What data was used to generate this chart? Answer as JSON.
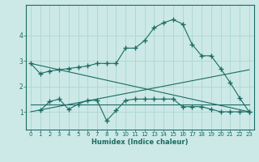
{
  "bg_color": "#cce9e7",
  "line_color": "#1a6b63",
  "grid_color": "#b0d8d5",
  "xlabel": "Humidex (Indice chaleur)",
  "xlim": [
    -0.5,
    23.5
  ],
  "ylim": [
    0.3,
    5.2
  ],
  "yticks": [
    1,
    2,
    3,
    4
  ],
  "xticks": [
    0,
    1,
    2,
    3,
    4,
    5,
    6,
    7,
    8,
    9,
    10,
    11,
    12,
    13,
    14,
    15,
    16,
    17,
    18,
    19,
    20,
    21,
    22,
    23
  ],
  "curve1_x": [
    0,
    1,
    2,
    3,
    4,
    5,
    6,
    7,
    8,
    9,
    10,
    11,
    12,
    13,
    14,
    15,
    16,
    17,
    18,
    19,
    20,
    21,
    22,
    23
  ],
  "curve1_y": [
    2.9,
    2.5,
    2.6,
    2.65,
    2.7,
    2.75,
    2.8,
    2.9,
    2.9,
    2.9,
    3.5,
    3.5,
    3.8,
    4.3,
    4.5,
    4.62,
    4.45,
    3.65,
    3.2,
    3.2,
    2.7,
    2.15,
    1.55,
    1.0
  ],
  "curve2_x": [
    1,
    2,
    3,
    4,
    5,
    6,
    7,
    8,
    9,
    10,
    11,
    12,
    13,
    14,
    15,
    16,
    17,
    18,
    19,
    20,
    21,
    22,
    23
  ],
  "curve2_y": [
    1.05,
    1.4,
    1.5,
    1.1,
    1.3,
    1.45,
    1.45,
    0.65,
    1.05,
    1.45,
    1.5,
    1.5,
    1.5,
    1.5,
    1.5,
    1.2,
    1.2,
    1.2,
    1.1,
    1.0,
    1.0,
    1.0,
    1.0
  ],
  "line1_x": [
    0,
    23
  ],
  "line1_y": [
    2.9,
    1.0
  ],
  "line2_x": [
    0,
    23
  ],
  "line2_y": [
    1.0,
    2.65
  ],
  "line3_x": [
    0,
    23
  ],
  "line3_y": [
    1.3,
    1.3
  ]
}
